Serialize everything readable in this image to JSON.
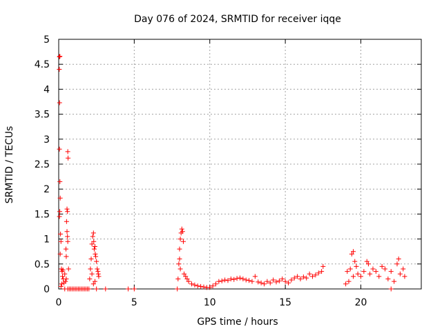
{
  "chart_data": {
    "type": "scatter",
    "title": "Day 076 of 2024, SRMTID for receiver iqqe",
    "xlabel": "GPS time / hours",
    "ylabel": "SRMTID / TECUs",
    "xlim": [
      0,
      24
    ],
    "ylim": [
      0,
      5
    ],
    "xticks": [
      0,
      5,
      10,
      15,
      20
    ],
    "yticks": [
      0,
      0.5,
      1,
      1.5,
      2,
      2.5,
      3,
      3.5,
      4,
      4.5,
      5
    ],
    "grid": true,
    "marker": "+",
    "color": "#ff0000",
    "series": [
      {
        "name": "SRMTID",
        "points": [
          [
            0.05,
            4.65
          ],
          [
            0.08,
            4.66
          ],
          [
            0.04,
            4.4
          ],
          [
            0.06,
            3.73
          ],
          [
            0.05,
            2.8
          ],
          [
            0.08,
            2.15
          ],
          [
            0.1,
            1.82
          ],
          [
            0.07,
            1.55
          ],
          [
            0.05,
            1.45
          ],
          [
            0.12,
            1.1
          ],
          [
            0.15,
            0.95
          ],
          [
            0.1,
            0.7
          ],
          [
            0.18,
            0.4
          ],
          [
            0.22,
            0.35
          ],
          [
            0.28,
            0.38
          ],
          [
            0.25,
            0.25
          ],
          [
            0.3,
            0.2
          ],
          [
            0.2,
            0.1
          ],
          [
            0.35,
            0.12
          ],
          [
            0.15,
            0.05
          ],
          [
            0.4,
            0.3
          ],
          [
            0.45,
            0.15
          ],
          [
            0.48,
            0.8
          ],
          [
            0.5,
            0.65
          ],
          [
            0.52,
            1.35
          ],
          [
            0.55,
            1.6
          ],
          [
            0.58,
            1.55
          ],
          [
            0.6,
            2.75
          ],
          [
            0.62,
            2.62
          ],
          [
            0.55,
            1.15
          ],
          [
            0.58,
            1.05
          ],
          [
            0.6,
            0.95
          ],
          [
            0.65,
            0.4
          ],
          [
            0.5,
            0.2
          ],
          [
            0.4,
            0.0
          ],
          [
            0.6,
            0.0
          ],
          [
            0.8,
            0.0
          ],
          [
            1.0,
            0.0
          ],
          [
            1.2,
            0.0
          ],
          [
            1.4,
            0.0
          ],
          [
            1.6,
            0.0
          ],
          [
            1.8,
            0.0
          ],
          [
            2.0,
            0.0
          ],
          [
            0.7,
            0.0
          ],
          [
            0.9,
            0.0
          ],
          [
            1.1,
            0.0
          ],
          [
            1.3,
            0.0
          ],
          [
            1.5,
            0.0
          ],
          [
            1.7,
            0.0
          ],
          [
            1.9,
            0.0
          ],
          [
            2.05,
            0.2
          ],
          [
            2.1,
            0.4
          ],
          [
            2.15,
            0.6
          ],
          [
            2.2,
            0.9
          ],
          [
            2.25,
            1.05
          ],
          [
            2.3,
            1.12
          ],
          [
            2.32,
            0.95
          ],
          [
            2.35,
            0.8
          ],
          [
            2.4,
            0.85
          ],
          [
            2.42,
            0.7
          ],
          [
            2.45,
            0.65
          ],
          [
            2.5,
            0.55
          ],
          [
            2.55,
            0.4
          ],
          [
            2.6,
            0.35
          ],
          [
            2.62,
            0.3
          ],
          [
            2.65,
            0.25
          ],
          [
            2.2,
            0.3
          ],
          [
            2.3,
            0.1
          ],
          [
            2.4,
            0.15
          ],
          [
            2.5,
            0.0
          ],
          [
            3.1,
            0.0
          ],
          [
            4.6,
            0.0
          ],
          [
            5.0,
            0.0
          ],
          [
            7.85,
            0.0
          ],
          [
            7.9,
            0.2
          ],
          [
            7.95,
            0.5
          ],
          [
            8.0,
            0.8
          ],
          [
            8.05,
            1.0
          ],
          [
            8.1,
            1.12
          ],
          [
            8.15,
            1.2
          ],
          [
            8.2,
            1.15
          ],
          [
            8.25,
            0.95
          ],
          [
            8.0,
            0.6
          ],
          [
            8.05,
            0.4
          ],
          [
            8.3,
            0.3
          ],
          [
            8.4,
            0.25
          ],
          [
            8.5,
            0.2
          ],
          [
            8.6,
            0.15
          ],
          [
            8.8,
            0.1
          ],
          [
            9.0,
            0.08
          ],
          [
            9.2,
            0.06
          ],
          [
            9.4,
            0.05
          ],
          [
            9.6,
            0.04
          ],
          [
            9.8,
            0.03
          ],
          [
            10.0,
            0.03
          ],
          [
            10.2,
            0.06
          ],
          [
            10.4,
            0.1
          ],
          [
            10.6,
            0.15
          ],
          [
            10.8,
            0.16
          ],
          [
            11.0,
            0.18
          ],
          [
            11.2,
            0.17
          ],
          [
            11.4,
            0.2
          ],
          [
            11.6,
            0.19
          ],
          [
            11.8,
            0.21
          ],
          [
            12.0,
            0.22
          ],
          [
            12.2,
            0.2
          ],
          [
            12.4,
            0.18
          ],
          [
            12.6,
            0.17
          ],
          [
            12.8,
            0.15
          ],
          [
            13.0,
            0.25
          ],
          [
            13.2,
            0.14
          ],
          [
            13.4,
            0.12
          ],
          [
            13.6,
            0.1
          ],
          [
            13.8,
            0.15
          ],
          [
            14.0,
            0.12
          ],
          [
            14.2,
            0.18
          ],
          [
            14.4,
            0.14
          ],
          [
            14.6,
            0.16
          ],
          [
            14.8,
            0.2
          ],
          [
            15.0,
            0.15
          ],
          [
            15.2,
            0.12
          ],
          [
            15.4,
            0.18
          ],
          [
            15.6,
            0.22
          ],
          [
            15.8,
            0.25
          ],
          [
            16.0,
            0.2
          ],
          [
            16.2,
            0.24
          ],
          [
            16.4,
            0.22
          ],
          [
            16.6,
            0.3
          ],
          [
            16.8,
            0.25
          ],
          [
            17.0,
            0.28
          ],
          [
            17.2,
            0.32
          ],
          [
            17.4,
            0.35
          ],
          [
            17.5,
            0.45
          ],
          [
            19.0,
            0.1
          ],
          [
            19.1,
            0.35
          ],
          [
            19.2,
            0.15
          ],
          [
            19.3,
            0.4
          ],
          [
            19.4,
            0.7
          ],
          [
            19.5,
            0.75
          ],
          [
            19.6,
            0.55
          ],
          [
            19.5,
            0.25
          ],
          [
            19.7,
            0.45
          ],
          [
            19.8,
            0.3
          ],
          [
            20.0,
            0.25
          ],
          [
            20.2,
            0.35
          ],
          [
            20.4,
            0.55
          ],
          [
            20.5,
            0.5
          ],
          [
            20.6,
            0.3
          ],
          [
            20.8,
            0.4
          ],
          [
            21.0,
            0.35
          ],
          [
            21.2,
            0.25
          ],
          [
            21.4,
            0.45
          ],
          [
            21.6,
            0.4
          ],
          [
            21.8,
            0.2
          ],
          [
            22.0,
            0.35
          ],
          [
            22.2,
            0.15
          ],
          [
            22.4,
            0.5
          ],
          [
            22.5,
            0.6
          ],
          [
            22.6,
            0.3
          ],
          [
            22.8,
            0.4
          ],
          [
            22.9,
            0.25
          ],
          [
            22.0,
            0.0
          ]
        ]
      }
    ]
  }
}
